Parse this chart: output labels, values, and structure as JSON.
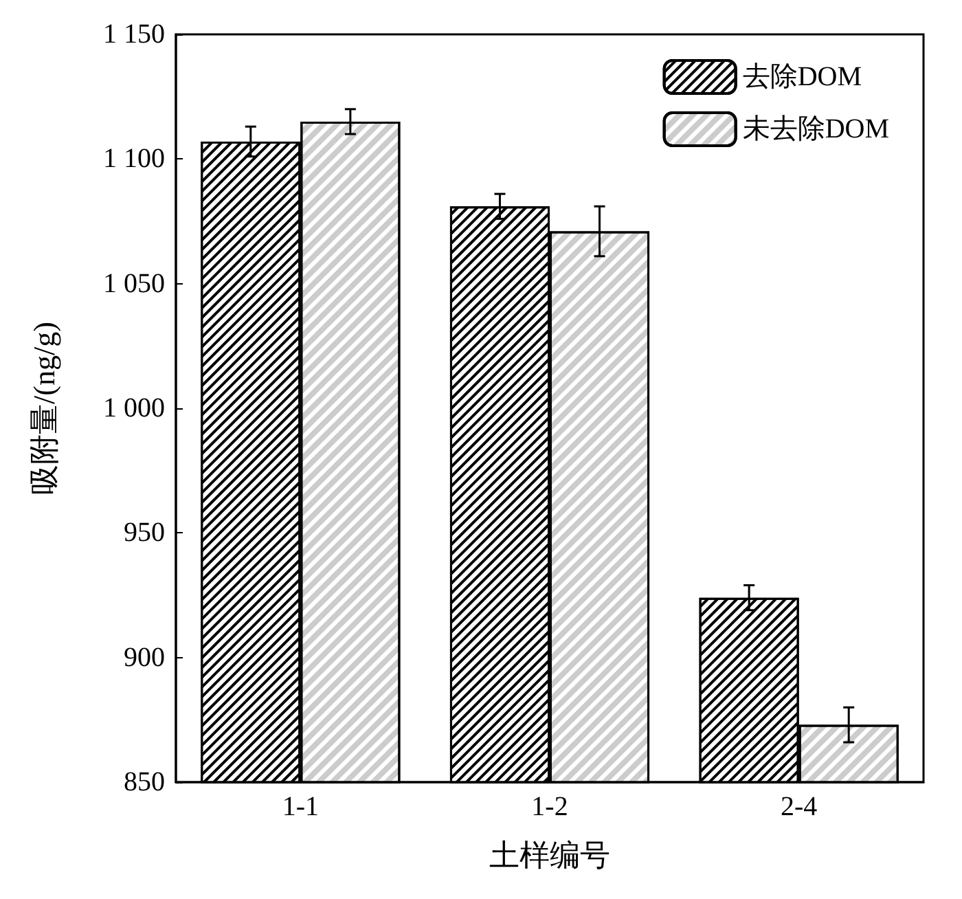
{
  "chart_data": {
    "type": "bar",
    "xlabel": "土样编号",
    "ylabel": "吸附量/(ng/g)",
    "categories": [
      "1-1",
      "1-2",
      "2-4"
    ],
    "series": [
      {
        "name": "去除DOM",
        "color": "#000000",
        "values": [
          1107,
          1081,
          924
        ],
        "errors": [
          6,
          5,
          5
        ]
      },
      {
        "name": "未去除DOM",
        "color": "#ffffff",
        "values": [
          1115,
          1071,
          873
        ],
        "errors": [
          5,
          10,
          7
        ]
      }
    ],
    "ylim": [
      850,
      1150
    ],
    "yticks": [
      850,
      900,
      950,
      {
        "value": 1000,
        "label": "1 000"
      },
      {
        "value": 1050,
        "label": "1 050"
      },
      {
        "value": 1100,
        "label": "1 100"
      },
      {
        "value": 1150,
        "label": "1 150"
      }
    ],
    "grid": false,
    "legend": "top right"
  }
}
